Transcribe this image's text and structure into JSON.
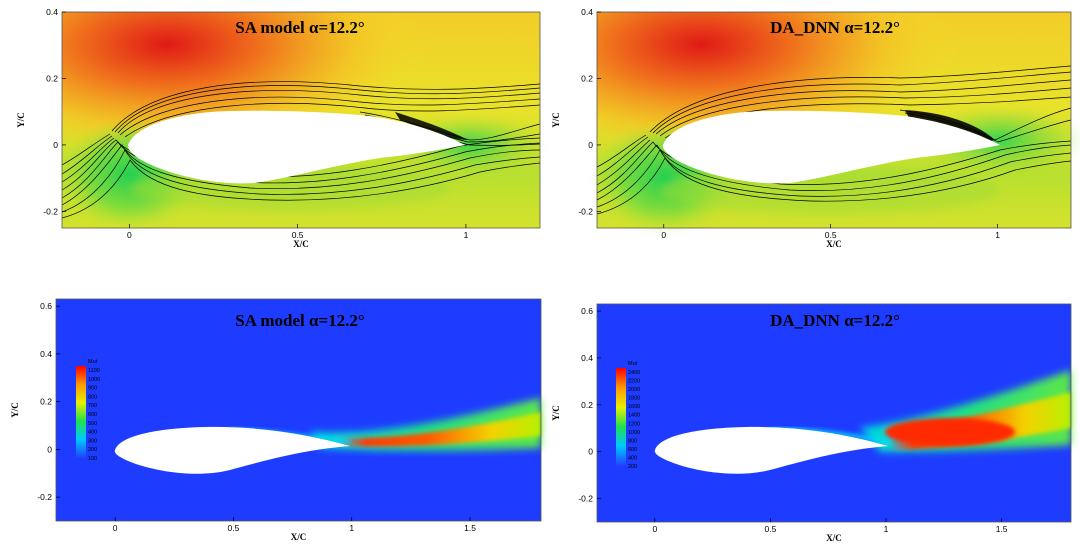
{
  "figure": {
    "panels": [
      {
        "id": "sa-pressure",
        "title": "SA model  α=12.2°",
        "field": "pressure",
        "xlabel": "X/C",
        "ylabel": "Y/C",
        "xticks": [
          "0",
          "0.5",
          "1"
        ],
        "yticks": [
          "0.4",
          "0.2",
          "0",
          "-0.2"
        ],
        "xlim": [
          -0.2,
          1.22
        ],
        "ylim": [
          -0.25,
          0.4
        ]
      },
      {
        "id": "dnn-pressure",
        "title": "DA_DNN  α=12.2°",
        "field": "pressure",
        "xlabel": "X/C",
        "ylabel": "Y/C",
        "xticks": [
          "0",
          "0.5",
          "1"
        ],
        "yticks": [
          "0.4",
          "0.2",
          "0",
          "-0.2"
        ],
        "xlim": [
          -0.2,
          1.22
        ],
        "ylim": [
          -0.25,
          0.4
        ]
      },
      {
        "id": "sa-eddy",
        "title": "SA model  α=12.2°",
        "field": "eddy-viscosity",
        "xlabel": "X/C",
        "ylabel": "Y/C",
        "xticks": [
          "0",
          "0.5",
          "1",
          "1.5"
        ],
        "yticks": [
          "0.6",
          "0.4",
          "0.2",
          "0",
          "-0.2"
        ],
        "xlim": [
          -0.25,
          1.8
        ],
        "ylim": [
          -0.3,
          0.63
        ],
        "legend_title": "Mut",
        "legend_levels": [
          "1100",
          "1000",
          "900",
          "800",
          "700",
          "600",
          "500",
          "400",
          "300",
          "200",
          "100"
        ]
      },
      {
        "id": "dnn-eddy",
        "title": "DA_DNN  α=12.2°",
        "field": "eddy-viscosity",
        "xlabel": "X/C",
        "ylabel": "Y/C",
        "xticks": [
          "0",
          "0.5",
          "1",
          "1.5"
        ],
        "yticks": [
          "0.6",
          "0.4",
          "0.2",
          "0",
          "-0.2"
        ],
        "xlim": [
          -0.25,
          1.8
        ],
        "ylim": [
          -0.3,
          0.63
        ],
        "legend_title": "Mut",
        "legend_levels": [
          "2400",
          "2200",
          "2000",
          "1800",
          "1600",
          "1400",
          "1200",
          "1000",
          "800",
          "600",
          "400",
          "200"
        ]
      }
    ],
    "colors": {
      "pressure_low": "#17c957",
      "pressure_mid": "#e6e600",
      "pressure_high": "#e8321e",
      "eddy_background": "#1e3cff",
      "eddy_peak": "#ff2a00",
      "streamline": "#000000",
      "airfoil": "#ffffff"
    }
  }
}
